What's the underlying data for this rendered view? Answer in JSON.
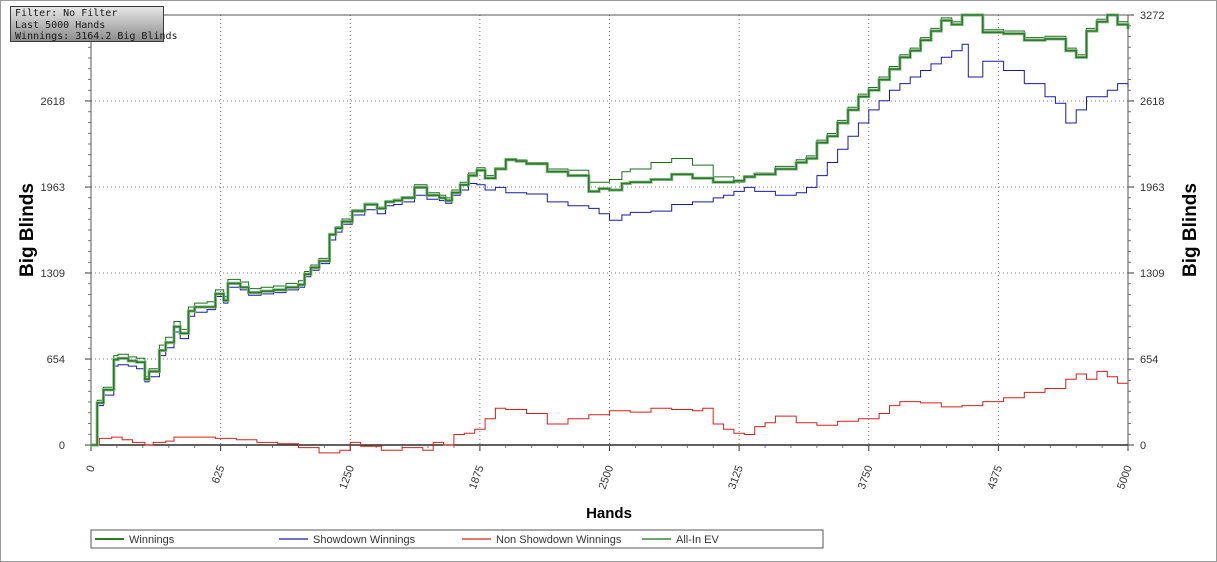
{
  "filter_box": {
    "line1": "Filter: No Filter",
    "line2": "Last 5000 Hands",
    "line3": "Winnings: 3164.2 Big Blinds"
  },
  "chart_data": {
    "type": "line",
    "xlabel": "Hands",
    "ylabel": "Big Blinds",
    "xlim": [
      0,
      5000
    ],
    "ylim": [
      0,
      3272
    ],
    "x_ticks": [
      "0",
      "625",
      "1250",
      "1875",
      "2500",
      "3125",
      "3750",
      "4375",
      "5000"
    ],
    "y_ticks": [
      "0",
      "654",
      "1309",
      "1963",
      "2618",
      "3272"
    ],
    "grid": true,
    "legend_position": "bottom",
    "series": [
      {
        "name": "Winnings",
        "color": "#2a7a2a",
        "x": [
          0,
          30,
          60,
          110,
          130,
          180,
          220,
          260,
          280,
          330,
          360,
          400,
          430,
          470,
          500,
          560,
          600,
          640,
          660,
          720,
          760,
          820,
          880,
          940,
          1000,
          1030,
          1060,
          1100,
          1150,
          1180,
          1210,
          1260,
          1320,
          1380,
          1420,
          1460,
          1500,
          1560,
          1620,
          1680,
          1710,
          1740,
          1780,
          1820,
          1860,
          1900,
          1950,
          2000,
          2050,
          2100,
          2200,
          2300,
          2400,
          2450,
          2500,
          2560,
          2600,
          2700,
          2800,
          2900,
          3000,
          3100,
          3150,
          3200,
          3300,
          3400,
          3450,
          3500,
          3550,
          3600,
          3650,
          3700,
          3750,
          3800,
          3850,
          3900,
          3950,
          4000,
          4050,
          4100,
          4150,
          4200,
          4300,
          4400,
          4500,
          4600,
          4700,
          4750,
          4800,
          4850,
          4900,
          4950,
          5000
        ],
        "values": [
          0,
          320,
          420,
          650,
          660,
          640,
          630,
          500,
          560,
          720,
          780,
          900,
          850,
          1020,
          1050,
          1050,
          1150,
          1100,
          1230,
          1200,
          1160,
          1170,
          1180,
          1200,
          1220,
          1300,
          1350,
          1400,
          1600,
          1650,
          1700,
          1780,
          1830,
          1800,
          1850,
          1860,
          1880,
          1960,
          1900,
          1880,
          1860,
          1920,
          1980,
          2050,
          2090,
          2030,
          2100,
          2170,
          2160,
          2140,
          2080,
          2050,
          1930,
          1950,
          1940,
          1990,
          2000,
          2020,
          2060,
          2030,
          2000,
          2010,
          2040,
          2060,
          2100,
          2150,
          2180,
          2300,
          2350,
          2450,
          2550,
          2650,
          2700,
          2780,
          2860,
          2950,
          3000,
          3080,
          3150,
          3230,
          3200,
          3272,
          3140,
          3130,
          3080,
          3090,
          3000,
          2950,
          3150,
          3220,
          3272,
          3200,
          3164
        ]
      },
      {
        "name": "Showdown Winnings",
        "color": "#1a1aaa",
        "x": [
          0,
          30,
          60,
          110,
          130,
          180,
          220,
          260,
          280,
          330,
          360,
          400,
          430,
          470,
          500,
          560,
          600,
          640,
          660,
          720,
          760,
          820,
          880,
          940,
          1000,
          1030,
          1060,
          1100,
          1150,
          1180,
          1210,
          1260,
          1320,
          1380,
          1420,
          1460,
          1500,
          1560,
          1620,
          1680,
          1710,
          1740,
          1780,
          1820,
          1860,
          1900,
          1950,
          2000,
          2100,
          2200,
          2300,
          2400,
          2450,
          2500,
          2560,
          2600,
          2700,
          2800,
          2900,
          3000,
          3050,
          3100,
          3150,
          3200,
          3300,
          3400,
          3450,
          3500,
          3550,
          3600,
          3650,
          3700,
          3750,
          3800,
          3850,
          3900,
          3950,
          4000,
          4050,
          4100,
          4150,
          4200,
          4230,
          4300,
          4400,
          4500,
          4600,
          4650,
          4700,
          4750,
          4800,
          4900,
          4950,
          5000
        ],
        "values": [
          0,
          300,
          380,
          600,
          610,
          600,
          580,
          480,
          520,
          680,
          740,
          860,
          810,
          980,
          1010,
          1030,
          1130,
          1080,
          1200,
          1180,
          1140,
          1150,
          1160,
          1180,
          1200,
          1280,
          1330,
          1380,
          1560,
          1620,
          1680,
          1750,
          1790,
          1760,
          1820,
          1830,
          1850,
          1900,
          1870,
          1860,
          1840,
          1900,
          1940,
          1990,
          1980,
          1940,
          1960,
          1920,
          1910,
          1850,
          1820,
          1800,
          1760,
          1710,
          1750,
          1770,
          1780,
          1830,
          1850,
          1880,
          1900,
          1930,
          1960,
          1930,
          1900,
          1920,
          1960,
          2050,
          2150,
          2250,
          2350,
          2450,
          2550,
          2620,
          2700,
          2750,
          2800,
          2850,
          2900,
          2950,
          3000,
          3050,
          2800,
          2920,
          2850,
          2750,
          2650,
          2600,
          2450,
          2550,
          2650,
          2700,
          2750,
          2720
        ]
      },
      {
        "name": "Non Showdown Winnings",
        "color": "#d42020",
        "x": [
          0,
          40,
          100,
          150,
          200,
          260,
          300,
          360,
          400,
          500,
          600,
          700,
          800,
          900,
          1000,
          1100,
          1200,
          1250,
          1300,
          1400,
          1500,
          1600,
          1650,
          1700,
          1750,
          1800,
          1850,
          1900,
          1950,
          2000,
          2100,
          2200,
          2300,
          2400,
          2500,
          2600,
          2700,
          2800,
          2900,
          2950,
          3000,
          3050,
          3100,
          3150,
          3200,
          3250,
          3300,
          3400,
          3500,
          3600,
          3700,
          3800,
          3850,
          3900,
          4000,
          4100,
          4200,
          4300,
          4400,
          4500,
          4600,
          4700,
          4750,
          4800,
          4850,
          4900,
          4950,
          5000
        ],
        "values": [
          0,
          50,
          60,
          40,
          20,
          0,
          20,
          30,
          60,
          60,
          50,
          40,
          20,
          10,
          -20,
          -60,
          -40,
          20,
          -10,
          -40,
          -20,
          -40,
          20,
          0,
          80,
          90,
          120,
          200,
          280,
          270,
          240,
          160,
          200,
          230,
          260,
          250,
          280,
          270,
          260,
          280,
          160,
          120,
          90,
          80,
          140,
          170,
          220,
          170,
          150,
          180,
          200,
          240,
          300,
          330,
          320,
          290,
          300,
          330,
          360,
          400,
          430,
          500,
          540,
          500,
          560,
          520,
          470,
          460
        ]
      },
      {
        "name": "All-In EV",
        "color": "#1e6e1e",
        "x": [
          0,
          30,
          60,
          110,
          130,
          180,
          220,
          260,
          280,
          330,
          360,
          400,
          430,
          470,
          500,
          560,
          600,
          640,
          660,
          720,
          760,
          820,
          880,
          940,
          1000,
          1030,
          1060,
          1100,
          1150,
          1180,
          1210,
          1260,
          1320,
          1380,
          1420,
          1460,
          1500,
          1560,
          1620,
          1680,
          1710,
          1740,
          1780,
          1820,
          1860,
          1900,
          1950,
          2000,
          2050,
          2100,
          2200,
          2300,
          2400,
          2450,
          2500,
          2560,
          2600,
          2700,
          2800,
          2900,
          3000,
          3100,
          3150,
          3200,
          3300,
          3400,
          3450,
          3500,
          3550,
          3600,
          3650,
          3700,
          3750,
          3800,
          3850,
          3900,
          3950,
          4000,
          4050,
          4100,
          4150,
          4200,
          4300,
          4400,
          4500,
          4600,
          4700,
          4750,
          4800,
          4850,
          4900,
          4950,
          5000
        ],
        "values": [
          0,
          340,
          440,
          680,
          690,
          670,
          660,
          520,
          580,
          760,
          820,
          940,
          880,
          1050,
          1080,
          1090,
          1180,
          1130,
          1260,
          1240,
          1190,
          1200,
          1210,
          1230,
          1250,
          1320,
          1370,
          1420,
          1610,
          1660,
          1720,
          1790,
          1840,
          1810,
          1860,
          1870,
          1890,
          1980,
          1920,
          1900,
          1880,
          1940,
          2000,
          2070,
          2110,
          2050,
          2110,
          2180,
          2170,
          2150,
          2100,
          2090,
          2000,
          2000,
          2020,
          2080,
          2100,
          2150,
          2180,
          2130,
          2040,
          2000,
          2050,
          2070,
          2120,
          2170,
          2200,
          2320,
          2370,
          2470,
          2570,
          2670,
          2720,
          2800,
          2880,
          2970,
          3020,
          3100,
          3170,
          3250,
          3220,
          3272,
          3160,
          3150,
          3100,
          3110,
          3020,
          2970,
          3170,
          3240,
          3272,
          3220,
          3184
        ]
      }
    ]
  }
}
